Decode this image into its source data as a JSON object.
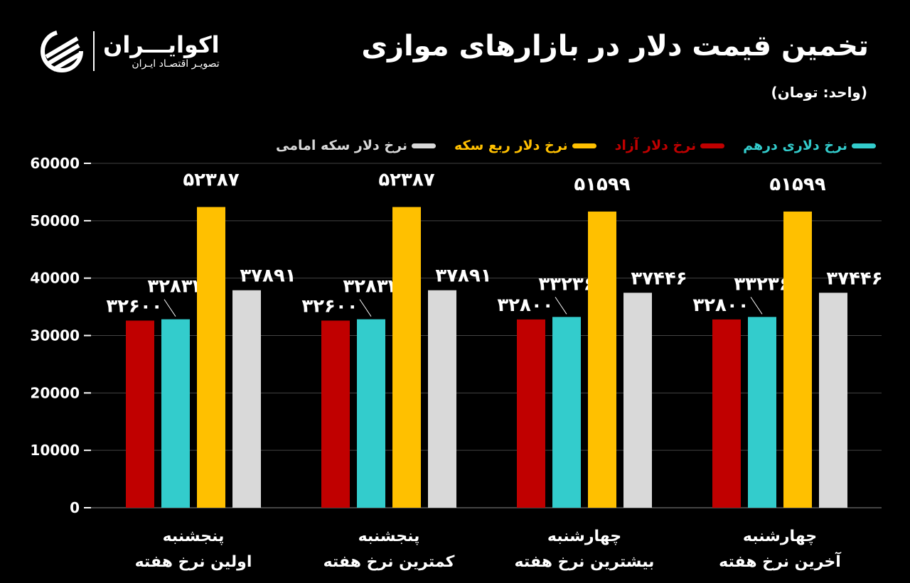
{
  "title": "تخمین قیمت دلار در بازارهای موازی",
  "unit": "(واحد: تومان)",
  "logo": {
    "name": "اکوایـــران",
    "subtitle": "تصویـر اقتصـاد ایـران"
  },
  "chart_data": {
    "type": "bar",
    "title": "تخمین قیمت دلار در بازارهای موازی",
    "ylabel": "(واحد: تومان)",
    "ylim": [
      0,
      60000
    ],
    "yticks": [
      "0",
      "10000",
      "20000",
      "30000",
      "40000",
      "50000",
      "60000"
    ],
    "grid": true,
    "legend_placement": "top",
    "categories": [
      {
        "line1": "پنجشنبه",
        "line2": "اولین نرخ هفته"
      },
      {
        "line1": "پنجشنبه",
        "line2": "کمترین نرخ هفته"
      },
      {
        "line1": "چهارشنبه",
        "line2": "بیشترین نرخ هفته"
      },
      {
        "line1": "چهارشنبه",
        "line2": "آخرین نرخ هفته"
      }
    ],
    "series": [
      {
        "name": "نرخ دلار آزاد",
        "color": "#c00000",
        "values": [
          32600,
          32600,
          32800,
          32800
        ],
        "labels": [
          "۳۲۶۰۰",
          "۳۲۶۰۰",
          "۳۲۸۰۰",
          "۳۲۸۰۰"
        ]
      },
      {
        "name": "نرخ دلاری درهم",
        "color": "#33cccc",
        "values": [
          32832,
          32832,
          33236,
          33236
        ],
        "labels": [
          "۳۲۸۳۲",
          "۳۲۸۳۲",
          "۳۳۲۳۶",
          "۳۳۲۳۶"
        ]
      },
      {
        "name": "نرخ دلار ربع سکه",
        "color": "#ffc000",
        "values": [
          52387,
          52387,
          51599,
          51599
        ],
        "labels": [
          "۵۲۳۸۷",
          "۵۲۳۸۷",
          "۵۱۵۹۹",
          "۵۱۵۹۹"
        ]
      },
      {
        "name": "نرخ دلار سکه امامی",
        "color": "#d9d9d9",
        "values": [
          37891,
          37891,
          37446,
          37446
        ],
        "labels": [
          "۳۷۸۹۱",
          "۳۷۸۹۱",
          "۳۷۴۴۶",
          "۳۷۴۴۶"
        ]
      }
    ],
    "legend_order": [
      1,
      0,
      2,
      3
    ]
  }
}
